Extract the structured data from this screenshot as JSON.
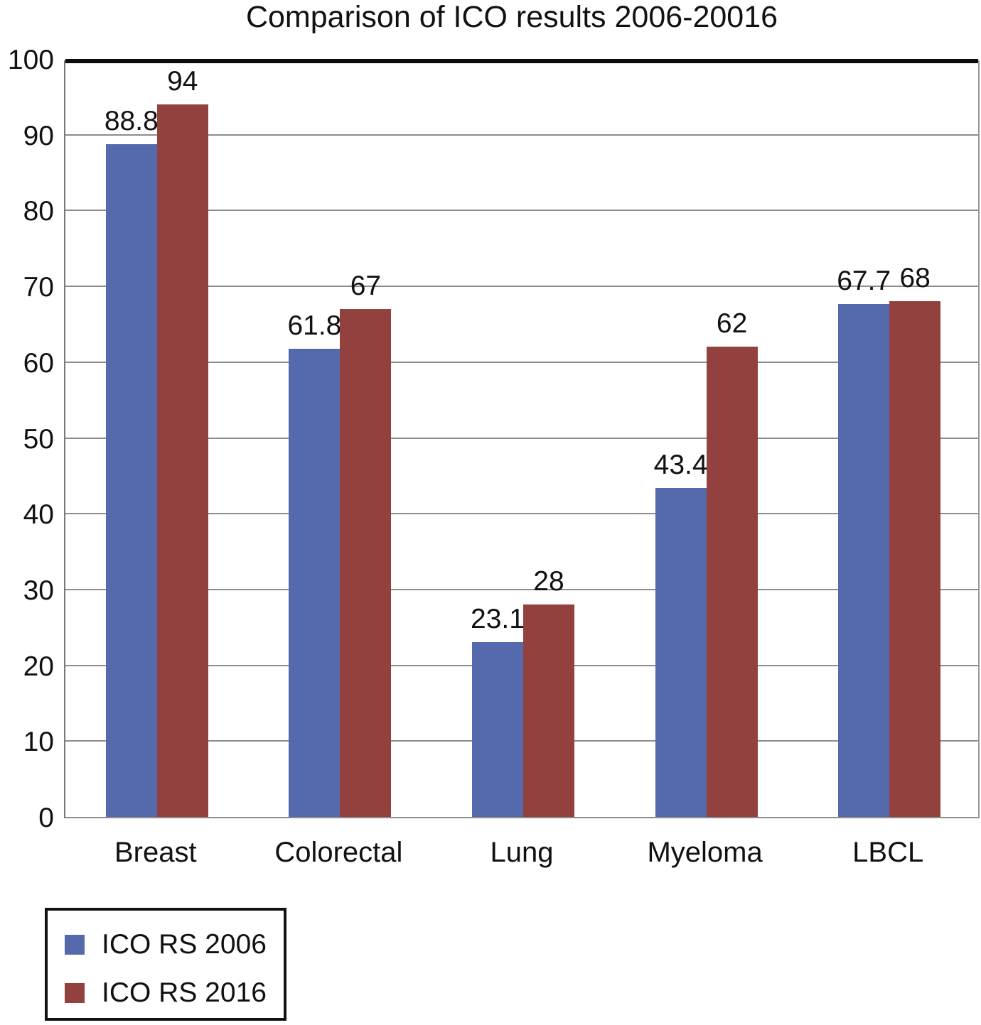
{
  "chart_data": {
    "type": "bar",
    "title": "Comparison of ICO results 2006-20016",
    "categories": [
      "Breast",
      "Colorectal",
      "Lung",
      "Myeloma",
      "LBCL"
    ],
    "series": [
      {
        "name": "ICO RS 2006",
        "color": "#5569ad",
        "values": [
          88.8,
          61.8,
          23.1,
          43.4,
          67.7
        ]
      },
      {
        "name": "ICO RS 2016",
        "color": "#93413e",
        "values": [
          94,
          67,
          28,
          62,
          68
        ]
      }
    ],
    "data_labels_shown": true,
    "ylim": [
      0,
      100
    ],
    "yticks": [
      0,
      10,
      20,
      30,
      40,
      50,
      60,
      70,
      80,
      90,
      100
    ],
    "xlabel": "",
    "ylabel": "",
    "grid": true,
    "gridline_color": "#8c8c8c",
    "legend_position": "bottom-left"
  }
}
